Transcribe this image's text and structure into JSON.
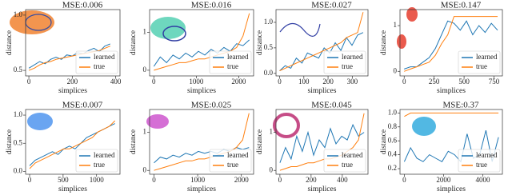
{
  "chart_data": [
    {
      "type": "line",
      "title": "MSE:0.006",
      "xlabel": "simplices",
      "ylabel": "distance",
      "x": [
        0,
        25,
        50,
        75,
        100,
        125,
        150,
        175,
        200,
        225,
        250,
        275,
        300,
        325,
        350,
        375
      ],
      "series": [
        {
          "name": "learned",
          "color": "#1f77b4",
          "values": [
            0.52,
            0.55,
            0.58,
            0.56,
            0.6,
            0.62,
            0.6,
            0.64,
            0.63,
            0.66,
            0.65,
            0.68,
            0.7,
            0.67,
            0.72,
            0.74
          ]
        },
        {
          "name": "true",
          "color": "#ff7f0e",
          "values": [
            0.5,
            0.52,
            0.55,
            0.57,
            0.58,
            0.6,
            0.61,
            0.62,
            0.63,
            0.64,
            0.65,
            0.66,
            0.67,
            0.68,
            0.7,
            0.72
          ]
        }
      ],
      "xlim": [
        -15,
        420
      ],
      "ylim": [
        0.45,
        1.05
      ],
      "xticks": [
        0,
        200,
        400
      ],
      "yticks": [
        0.5,
        {
          "value": 1,
          "label": "1.0"
        }
      ],
      "legend": "lower right"
    },
    {
      "type": "line",
      "title": "MSE:0.016",
      "xlabel": "simplices",
      "ylabel": "distance",
      "x": [
        0,
        150,
        300,
        450,
        600,
        750,
        900,
        1050,
        1200,
        1350,
        1500,
        1650,
        1800,
        1950,
        2100,
        2250
      ],
      "series": [
        {
          "name": "learned",
          "color": "#1f77b4",
          "values": [
            0.1,
            0.35,
            0.2,
            0.4,
            0.3,
            0.45,
            0.35,
            0.5,
            0.4,
            0.55,
            0.45,
            0.6,
            0.5,
            0.7,
            0.65,
            0.8
          ]
        },
        {
          "name": "true",
          "color": "#ff7f0e",
          "values": [
            0,
            0.05,
            0.1,
            0.15,
            0.2,
            0.2,
            0.25,
            0.3,
            0.3,
            0.35,
            0.4,
            0.45,
            0.5,
            0.6,
            0.9,
            1.5
          ]
        }
      ],
      "xlim": [
        -100,
        2350
      ],
      "ylim": [
        -0.15,
        1.6
      ],
      "xticks": [
        0,
        1000,
        2000
      ],
      "yticks": [
        0,
        1
      ],
      "legend": "lower right"
    },
    {
      "type": "line",
      "title": "MSE:0.027",
      "xlabel": "simplices",
      "ylabel": "distance",
      "x": [
        0,
        23,
        46,
        69,
        92,
        115,
        138,
        161,
        184,
        207,
        230,
        253,
        276,
        299,
        322,
        345
      ],
      "series": [
        {
          "name": "learned",
          "color": "#1f77b4",
          "values": [
            0.05,
            0.15,
            0.1,
            0.3,
            0.2,
            0.4,
            0.35,
            0.3,
            0.5,
            0.4,
            0.6,
            0.45,
            0.7,
            0.55,
            0.75,
            0.8
          ]
        },
        {
          "name": "true",
          "color": "#ff7f0e",
          "values": [
            0.05,
            0.1,
            0.15,
            0.2,
            0.25,
            0.3,
            0.35,
            0.4,
            0.45,
            0.5,
            0.55,
            0.6,
            0.7,
            0.75,
            0.8,
            1.2
          ]
        }
      ],
      "xlim": [
        -15,
        365
      ],
      "ylim": [
        -0.05,
        1.25
      ],
      "xticks": [
        0,
        100,
        200,
        300
      ],
      "yticks": [
        {
          "value": 0,
          "label": "0.0"
        },
        0.5,
        {
          "value": 1,
          "label": "1.0"
        }
      ],
      "legend": "lower right"
    },
    {
      "type": "line",
      "title": "MSE:0.147",
      "xlabel": "simplices",
      "ylabel": "distance",
      "x": [
        0,
        52,
        104,
        156,
        208,
        260,
        312,
        364,
        416,
        468,
        520,
        572,
        624,
        676,
        728,
        780
      ],
      "series": [
        {
          "name": "learned",
          "color": "#1f77b4",
          "values": [
            0.05,
            0.1,
            0.1,
            0.2,
            0.3,
            0.5,
            0.8,
            1.1,
            1.05,
            0.9,
            1.1,
            0.8,
            1.0,
            0.85,
            1.05,
            0.9
          ]
        },
        {
          "name": "true",
          "color": "#ff7f0e",
          "values": [
            0,
            0.05,
            0.1,
            0.15,
            0.2,
            0.35,
            0.6,
            0.8,
            1.2,
            1.2,
            1.2,
            1.2,
            1.2,
            1.2,
            1.2,
            1.2
          ]
        }
      ],
      "xlim": [
        -35,
        820
      ],
      "ylim": [
        -0.1,
        1.35
      ],
      "xticks": [
        0,
        250,
        500,
        750
      ],
      "yticks": [
        0,
        1
      ],
      "legend": "lower right"
    },
    {
      "type": "line",
      "title": "MSE:0.007",
      "xlabel": "simplices",
      "ylabel": "distance",
      "x": [
        0,
        85,
        170,
        255,
        340,
        425,
        510,
        595,
        680,
        765,
        850,
        935,
        1020,
        1105,
        1190,
        1275
      ],
      "series": [
        {
          "name": "learned",
          "color": "#1f77b4",
          "values": [
            0.1,
            0.2,
            0.25,
            0.3,
            0.35,
            0.3,
            0.4,
            0.45,
            0.4,
            0.5,
            0.6,
            0.65,
            0.7,
            0.75,
            0.8,
            0.85
          ]
        },
        {
          "name": "true",
          "color": "#ff7f0e",
          "values": [
            0.05,
            0.15,
            0.2,
            0.25,
            0.3,
            0.35,
            0.4,
            0.4,
            0.45,
            0.5,
            0.55,
            0.6,
            0.7,
            0.75,
            0.8,
            0.9
          ]
        }
      ],
      "xlim": [
        -60,
        1350
      ],
      "ylim": [
        -0.05,
        1.1
      ],
      "xticks": [
        0,
        500,
        1000
      ],
      "yticks": [
        {
          "value": 0,
          "label": "0.0"
        },
        0.5,
        {
          "value": 1,
          "label": "1.0"
        }
      ],
      "legend": "lower right"
    },
    {
      "type": "line",
      "title": "MSE:0.025",
      "xlabel": "simplices",
      "ylabel": "distance",
      "x": [
        0,
        145,
        290,
        435,
        580,
        725,
        870,
        1015,
        1160,
        1305,
        1450,
        1595,
        1740,
        1885,
        2030,
        2175
      ],
      "series": [
        {
          "name": "learned",
          "color": "#1f77b4",
          "values": [
            0.2,
            0.35,
            0.3,
            0.4,
            0.35,
            0.45,
            0.4,
            0.5,
            0.45,
            0.5,
            0.45,
            0.55,
            0.5,
            0.6,
            0.55,
            0.6
          ]
        },
        {
          "name": "true",
          "color": "#ff7f0e",
          "values": [
            0,
            0.05,
            0.1,
            0.15,
            0.2,
            0.25,
            0.25,
            0.3,
            0.3,
            0.35,
            0.4,
            0.45,
            0.5,
            0.6,
            0.8,
            1.5
          ]
        }
      ],
      "xlim": [
        -100,
        2280
      ],
      "ylim": [
        -0.1,
        1.6
      ],
      "xticks": [
        0,
        1000,
        2000
      ],
      "yticks": [
        0,
        1
      ],
      "legend": "lower right"
    },
    {
      "type": "line",
      "title": "MSE:0.045",
      "xlabel": "simplices",
      "ylabel": "distance",
      "x": [
        0,
        36,
        72,
        108,
        144,
        180,
        216,
        252,
        288,
        324,
        360,
        396,
        432,
        468,
        504,
        540
      ],
      "series": [
        {
          "name": "learned",
          "color": "#1f77b4",
          "values": [
            0.2,
            0.6,
            0.3,
            0.9,
            0.5,
            1.0,
            0.4,
            0.8,
            0.6,
            1.1,
            0.7,
            0.9,
            0.8,
            1.2,
            0.9,
            1.0
          ]
        },
        {
          "name": "true",
          "color": "#ff7f0e",
          "values": [
            0,
            0.05,
            0.1,
            0.1,
            0.15,
            0.2,
            0.2,
            0.25,
            0.3,
            0.3,
            0.35,
            0.4,
            0.5,
            0.6,
            0.8,
            1.5
          ]
        }
      ],
      "xlim": [
        -25,
        565
      ],
      "ylim": [
        -0.1,
        1.6
      ],
      "xticks": [
        0,
        200,
        400
      ],
      "yticks": [
        0,
        1
      ],
      "legend": "lower right"
    },
    {
      "type": "line",
      "title": "MSE:0.37",
      "xlabel": "simplices",
      "ylabel": "distance",
      "x": [
        0,
        320,
        640,
        960,
        1280,
        1600,
        1920,
        2240,
        2560,
        2880,
        3200,
        3520,
        3840,
        4160,
        4480,
        4800
      ],
      "series": [
        {
          "name": "learned",
          "color": "#1f77b4",
          "values": [
            0.3,
            0.5,
            0.35,
            0.3,
            0.4,
            0.35,
            0.3,
            0.45,
            0.4,
            0.3,
            0.7,
            0.35,
            0.4,
            0.75,
            0.3,
            0.65
          ]
        },
        {
          "name": "true",
          "color": "#ff7f0e",
          "values": [
            0.95,
            1,
            1,
            1,
            1,
            1,
            1,
            1,
            1,
            1,
            1,
            1,
            1,
            1,
            1,
            1
          ]
        }
      ],
      "xlim": [
        -220,
        5000
      ],
      "ylim": [
        0.12,
        1.05
      ],
      "xticks": [
        0,
        2000,
        4000
      ],
      "yticks": [
        0.2,
        0.4,
        0.6,
        0.8,
        {
          "value": 1,
          "label": "1.0"
        }
      ],
      "legend": "lower right"
    }
  ]
}
